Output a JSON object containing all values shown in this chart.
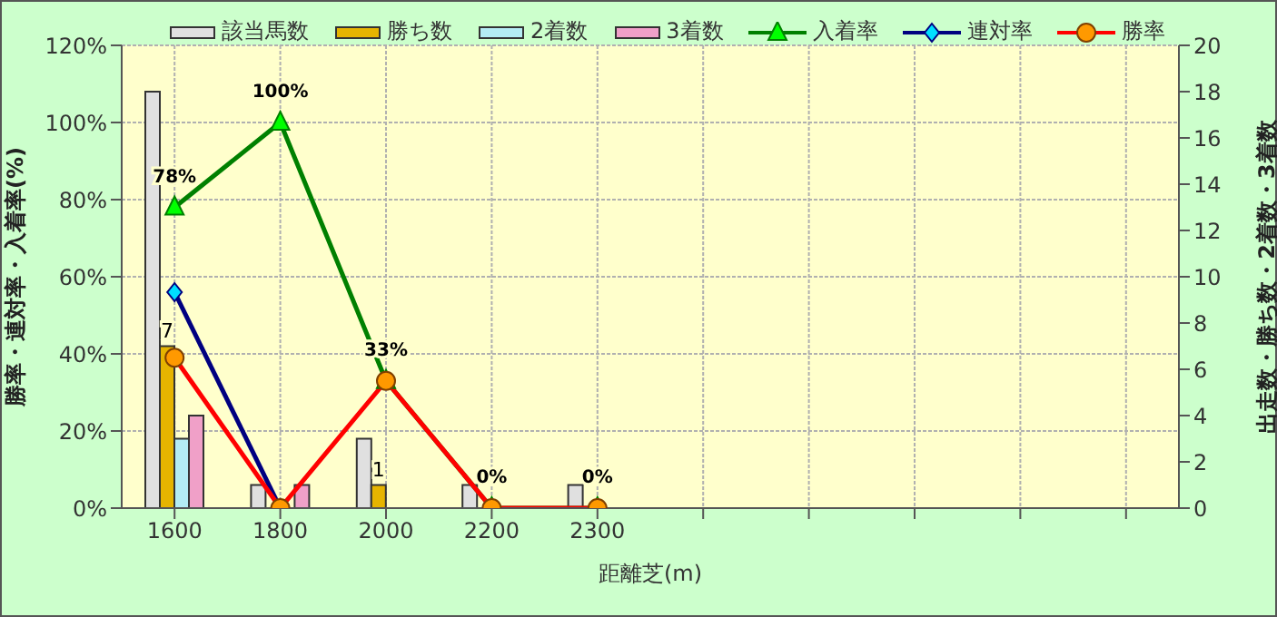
{
  "chart_data": {
    "type": "bar",
    "xlabel": "距離芝(m)",
    "ylabel": "勝率・連対率・入着率(%)",
    "y2label": "出走数・勝ち数・2着数・3着数",
    "categories": [
      "1600",
      "1800",
      "2000",
      "2200",
      "2300",
      null,
      null,
      null,
      null,
      null
    ],
    "series": [
      {
        "name": "該当馬数",
        "axis": "y2",
        "color": "#e0e0e0",
        "values": [
          18,
          1,
          3,
          1,
          1,
          null,
          null,
          null,
          null,
          null
        ]
      },
      {
        "name": "勝ち数",
        "axis": "y2",
        "color": "#e6b400",
        "values": [
          7,
          0,
          1,
          0,
          0,
          null,
          null,
          null,
          null,
          null
        ],
        "value_labels": [
          "7",
          null,
          "1",
          null,
          null,
          null,
          null,
          null,
          null,
          null
        ]
      },
      {
        "name": "2着数",
        "axis": "y2",
        "color": "#b4ecf4",
        "values": [
          3,
          0,
          0,
          0,
          0,
          null,
          null,
          null,
          null,
          null
        ]
      },
      {
        "name": "3着数",
        "axis": "y2",
        "color": "#f0a0c8",
        "values": [
          4,
          1,
          0,
          0,
          0,
          null,
          null,
          null,
          null,
          null
        ]
      },
      {
        "name": "入着率",
        "type": "line",
        "axis": "y",
        "color": "#008000",
        "marker": "triangle",
        "values": [
          78,
          100,
          33,
          0,
          0,
          null,
          null,
          null,
          null,
          null
        ],
        "value_labels": [
          "78%",
          "100%",
          "33%",
          "0%",
          "0%",
          null,
          null,
          null,
          null,
          null
        ]
      },
      {
        "name": "連対率",
        "type": "line",
        "axis": "y",
        "color": "#000080",
        "marker": "diamond",
        "values": [
          56,
          0,
          null,
          null,
          null,
          null,
          null,
          null,
          null,
          null
        ]
      },
      {
        "name": "勝率",
        "type": "line",
        "axis": "y",
        "color": "#ff0000",
        "marker": "circle",
        "values": [
          39,
          0,
          33,
          0,
          0,
          null,
          null,
          null,
          null,
          null
        ]
      }
    ],
    "ylim": [
      0,
      120
    ],
    "yticks": [
      {
        "value": 0,
        "label": "0%"
      },
      {
        "value": 20,
        "label": "20%"
      },
      {
        "value": 40,
        "label": "40%"
      },
      {
        "value": 60,
        "label": "60%"
      },
      {
        "value": 80,
        "label": "80%"
      },
      {
        "value": 100,
        "label": "100%"
      },
      {
        "value": 120,
        "label": "120%"
      }
    ],
    "y2lim": [
      0,
      20
    ],
    "y2ticks": [
      0,
      2,
      4,
      6,
      8,
      10,
      12,
      14,
      16,
      18,
      20
    ],
    "grid": true,
    "legend": "top"
  }
}
